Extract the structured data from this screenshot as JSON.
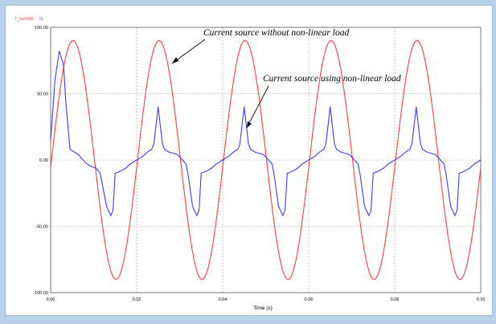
{
  "legend": [
    {
      "name": "I_sumbir",
      "color": "#ff3b3b"
    },
    {
      "name": "Is",
      "color": "#3b3bff"
    }
  ],
  "annotations": [
    {
      "text": "Current source without non-linear load",
      "series": "I_sumbir"
    },
    {
      "text": "Current source using non-linear load",
      "series": "Is"
    }
  ],
  "chart_data": {
    "type": "line",
    "title": "",
    "xlabel": "Time (s)",
    "ylabel": "",
    "xlim": [
      0.0,
      0.1
    ],
    "ylim": [
      -100,
      100
    ],
    "grid": true,
    "legend_position": "top-left",
    "x_ticks": [
      0.0,
      0.02,
      0.04,
      0.06,
      0.08,
      0.1
    ],
    "x_tick_labels": [
      "0.00",
      "0.02",
      "0.04",
      "0.06",
      "0.08",
      "0.10"
    ],
    "y_ticks": [
      100,
      50,
      0,
      -50,
      -100
    ],
    "y_tick_labels": [
      "100.00",
      "50.00",
      "0.00",
      "-50.00",
      "-100.00"
    ],
    "series": [
      {
        "name": "I_sumbir",
        "color": "#ff3b3b",
        "kind": "sine",
        "amplitude": 90,
        "period": 0.02,
        "phase_offset": 0.0002,
        "x_range": [
          0.0,
          0.1
        ]
      },
      {
        "name": "Is",
        "color": "#3b3bff",
        "x": [
          0.0,
          0.001,
          0.002,
          0.003,
          0.0035,
          0.0045,
          0.0055,
          0.0065,
          0.0075,
          0.0085,
          0.0095,
          0.0105,
          0.0115,
          0.012,
          0.013,
          0.014,
          0.0145,
          0.015,
          0.0165,
          0.0175,
          0.0185,
          0.02,
          0.0215,
          0.0225,
          0.0235,
          0.024,
          0.025,
          0.026,
          0.0265,
          0.0275,
          0.0295,
          0.0315,
          0.032,
          0.033,
          0.034,
          0.0345,
          0.035,
          0.0365,
          0.0375,
          0.0385,
          0.04,
          0.0415,
          0.0425,
          0.0435,
          0.044,
          0.045,
          0.046,
          0.0465,
          0.0475,
          0.0495,
          0.0515,
          0.052,
          0.053,
          0.054,
          0.0545,
          0.055,
          0.0565,
          0.0575,
          0.0585,
          0.06,
          0.0615,
          0.0625,
          0.0635,
          0.064,
          0.065,
          0.066,
          0.0665,
          0.0675,
          0.0695,
          0.0715,
          0.072,
          0.073,
          0.074,
          0.0745,
          0.075,
          0.0765,
          0.0775,
          0.0785,
          0.08,
          0.0815,
          0.0825,
          0.0835,
          0.084,
          0.085,
          0.086,
          0.0865,
          0.0875,
          0.0895,
          0.0915,
          0.092,
          0.093,
          0.094,
          0.0945,
          0.095,
          0.0965,
          0.0975,
          0.0985,
          0.1
        ],
        "y": [
          15,
          60,
          82,
          72,
          45,
          8,
          6,
          4,
          0,
          -3,
          -5,
          -6,
          -10,
          -18,
          -35,
          -42,
          -38,
          -10,
          -8,
          -6,
          -3,
          0,
          3,
          6,
          8,
          12,
          40,
          12,
          8,
          6,
          4,
          -3,
          -12,
          -35,
          -42,
          -38,
          -10,
          -8,
          -6,
          -3,
          0,
          3,
          6,
          8,
          12,
          40,
          12,
          8,
          6,
          4,
          -3,
          -12,
          -35,
          -42,
          -38,
          -10,
          -8,
          -6,
          -3,
          0,
          3,
          6,
          8,
          12,
          40,
          12,
          8,
          6,
          4,
          -3,
          -12,
          -35,
          -42,
          -38,
          -10,
          -8,
          -6,
          -3,
          0,
          3,
          6,
          8,
          12,
          40,
          12,
          8,
          6,
          4,
          -3,
          -12,
          -35,
          -42,
          -38,
          -10,
          -8,
          -6,
          -3,
          0
        ]
      }
    ]
  }
}
